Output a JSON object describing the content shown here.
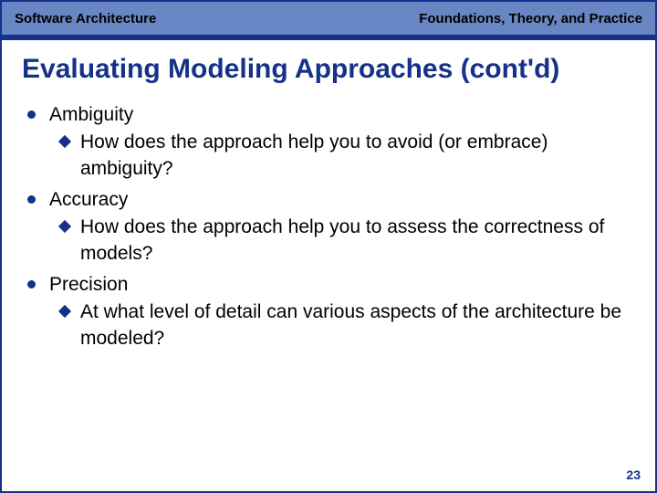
{
  "colors": {
    "header_bg": "#6885c4",
    "header_text_left": "#000000",
    "header_text_right": "#000000",
    "border_strip": "#163188",
    "slide_border": "#163188",
    "title_color": "#163188",
    "bullet_color": "#163188",
    "body_text": "#000000",
    "page_number": "#163188",
    "background": "#ffffff"
  },
  "typography": {
    "header_fontsize": 15,
    "title_fontsize": 30,
    "body_fontsize": 21,
    "page_number_fontsize": 14
  },
  "header": {
    "left": "Software Architecture",
    "right": "Foundations, Theory, and Practice"
  },
  "title": "Evaluating Modeling Approaches (cont'd)",
  "bullets": [
    {
      "label": "Ambiguity",
      "subs": [
        "How does the approach help you to avoid (or embrace) ambiguity?"
      ]
    },
    {
      "label": "Accuracy",
      "subs": [
        "How does the approach help you to assess the correctness of models?"
      ]
    },
    {
      "label": "Precision",
      "subs": [
        "At what level of detail can various aspects of the architecture be modeled?"
      ]
    }
  ],
  "page_number": "23"
}
